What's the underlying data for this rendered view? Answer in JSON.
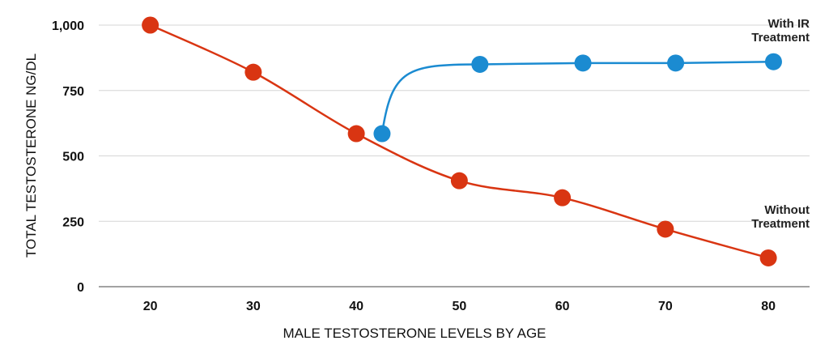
{
  "chart_data": {
    "type": "line",
    "title": "",
    "xlabel": "MALE TESTOSTERONE LEVELS BY AGE",
    "ylabel": "TOTAL TESTOSTERONE NG/DL",
    "xlim": [
      15,
      84
    ],
    "ylim": [
      0,
      1000
    ],
    "x_ticks": [
      20,
      30,
      40,
      50,
      60,
      70,
      80
    ],
    "y_ticks": [
      {
        "value": 0,
        "label": "0"
      },
      {
        "value": 250,
        "label": "250"
      },
      {
        "value": 500,
        "label": "500"
      },
      {
        "value": 750,
        "label": "750"
      },
      {
        "value": 1000,
        "label": "1,000"
      }
    ],
    "grid": true,
    "series": [
      {
        "name": "Without Treatment",
        "label_lines": [
          "Without",
          "Treatment"
        ],
        "color": "#d93512",
        "x": [
          20,
          30,
          40,
          50,
          60,
          70,
          80
        ],
        "y": [
          1000,
          820,
          585,
          405,
          340,
          220,
          110
        ]
      },
      {
        "name": "With IR Treatment",
        "label_lines": [
          "With IR",
          "Treatment"
        ],
        "color": "#1b8bd1",
        "x": [
          42.5,
          52,
          62,
          71,
          80.5
        ],
        "y": [
          585,
          850,
          855,
          855,
          860
        ]
      }
    ]
  }
}
